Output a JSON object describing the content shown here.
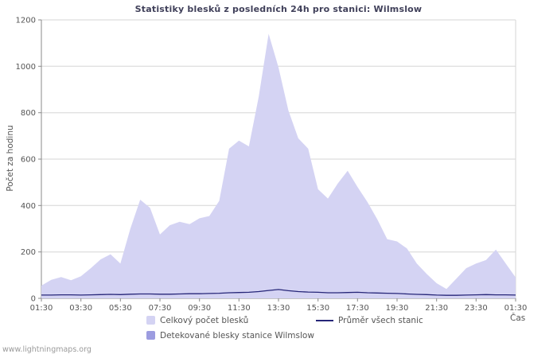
{
  "page": {
    "watermark": "www.lightningmaps.org",
    "background": "#ffffff"
  },
  "chart_data": {
    "type": "area",
    "title": "Statistiky blesků z posledních 24h pro stanici: Wilmslow",
    "xlabel": "Čas",
    "ylabel": "Počet za hodinu",
    "ylim": [
      0,
      1200
    ],
    "ytick_step": 200,
    "grid": "horizontal",
    "legend_position": "bottom",
    "x_tick_labels": [
      "01:30",
      "03:30",
      "05:30",
      "07:30",
      "09:30",
      "11:30",
      "13:30",
      "15:30",
      "17:30",
      "19:30",
      "21:30",
      "23:30",
      "01:30"
    ],
    "x": [
      "01:30",
      "02:00",
      "02:30",
      "03:00",
      "03:30",
      "04:00",
      "04:30",
      "05:00",
      "05:30",
      "06:00",
      "06:30",
      "07:00",
      "07:30",
      "08:00",
      "08:30",
      "09:00",
      "09:30",
      "10:00",
      "10:30",
      "11:00",
      "11:30",
      "12:00",
      "12:30",
      "13:00",
      "13:30",
      "14:00",
      "14:30",
      "15:00",
      "15:30",
      "16:00",
      "16:30",
      "17:00",
      "17:30",
      "18:00",
      "18:30",
      "19:00",
      "19:30",
      "20:00",
      "20:30",
      "21:00",
      "21:30",
      "22:00",
      "22:30",
      "23:00",
      "23:30",
      "00:00",
      "00:30",
      "01:00",
      "01:30"
    ],
    "series": [
      {
        "name": "Celkový počet blesků",
        "type": "area",
        "color": "#d4d3f3",
        "values": [
          55,
          80,
          92,
          78,
          95,
          130,
          168,
          190,
          150,
          300,
          425,
          390,
          275,
          315,
          330,
          320,
          345,
          355,
          420,
          645,
          680,
          655,
          870,
          1140,
          995,
          810,
          690,
          645,
          470,
          430,
          495,
          550,
          480,
          415,
          340,
          255,
          245,
          215,
          150,
          105,
          65,
          40,
          85,
          130,
          150,
          165,
          210,
          150,
          90
        ]
      },
      {
        "name": "Detekované blesky stanice Wilmslow",
        "type": "area",
        "color": "#9c9ce0",
        "values": [
          0,
          0,
          0,
          0,
          0,
          0,
          0,
          0,
          0,
          0,
          0,
          0,
          0,
          0,
          0,
          0,
          0,
          0,
          0,
          0,
          0,
          0,
          0,
          0,
          0,
          0,
          0,
          0,
          0,
          0,
          0,
          0,
          0,
          0,
          0,
          0,
          0,
          0,
          0,
          0,
          0,
          0,
          0,
          0,
          0,
          0,
          0,
          0,
          0
        ]
      },
      {
        "name": "Průměr všech stanic",
        "type": "line",
        "color": "#262678",
        "values": [
          14,
          14,
          15,
          15,
          14,
          15,
          16,
          17,
          16,
          18,
          19,
          19,
          18,
          18,
          19,
          20,
          20,
          21,
          22,
          24,
          25,
          26,
          29,
          34,
          38,
          33,
          29,
          27,
          26,
          24,
          24,
          25,
          26,
          24,
          23,
          22,
          21,
          19,
          17,
          16,
          14,
          13,
          13,
          14,
          15,
          16,
          15,
          15,
          14
        ]
      }
    ]
  }
}
